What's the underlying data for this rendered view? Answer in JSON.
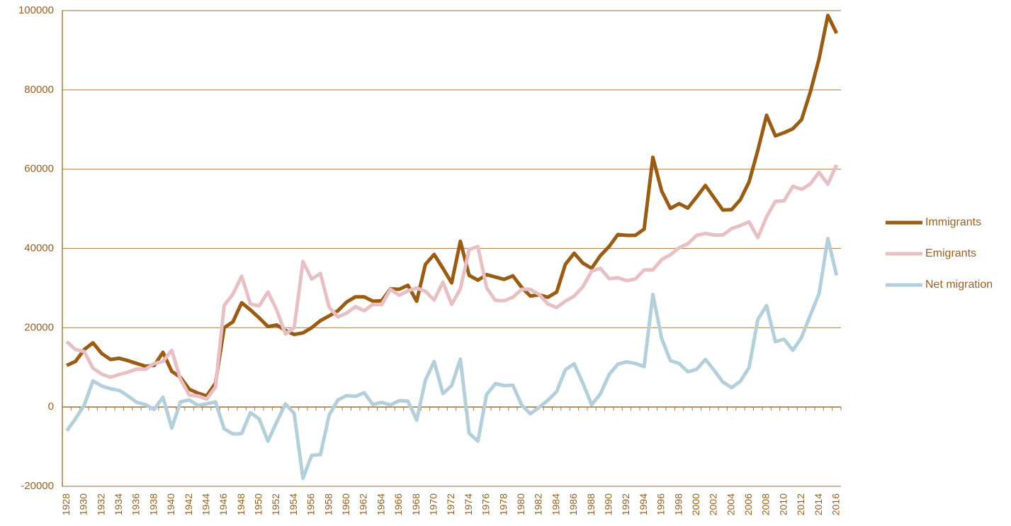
{
  "chart_data": {
    "type": "line",
    "x": [
      1928,
      1929,
      1930,
      1931,
      1932,
      1933,
      1934,
      1935,
      1936,
      1937,
      1938,
      1939,
      1940,
      1941,
      1942,
      1943,
      1944,
      1945,
      1946,
      1947,
      1948,
      1949,
      1950,
      1951,
      1952,
      1953,
      1954,
      1955,
      1956,
      1957,
      1958,
      1959,
      1960,
      1961,
      1962,
      1963,
      1964,
      1965,
      1966,
      1967,
      1968,
      1969,
      1970,
      1971,
      1972,
      1973,
      1974,
      1975,
      1976,
      1977,
      1978,
      1979,
      1980,
      1981,
      1982,
      1983,
      1984,
      1985,
      1986,
      1987,
      1988,
      1989,
      1990,
      1991,
      1992,
      1993,
      1994,
      1995,
      1996,
      1997,
      1998,
      1999,
      2000,
      2001,
      2002,
      2003,
      2004,
      2005,
      2006,
      2007,
      2008,
      2009,
      2010,
      2011,
      2012,
      2013,
      2014,
      2015,
      2016
    ],
    "xlim": [
      1927.5,
      2016.5
    ],
    "xticks": [
      1928,
      1930,
      1932,
      1934,
      1936,
      1938,
      1940,
      1942,
      1944,
      1946,
      1948,
      1950,
      1952,
      1954,
      1956,
      1958,
      1960,
      1962,
      1964,
      1966,
      1968,
      1970,
      1972,
      1974,
      1976,
      1978,
      1980,
      1982,
      1984,
      1986,
      1988,
      1990,
      1992,
      1994,
      1996,
      1998,
      2000,
      2002,
      2004,
      2006,
      2008,
      2010,
      2012,
      2014,
      2016
    ],
    "ylim": [
      -20000,
      100000
    ],
    "yticks": [
      -20000,
      0,
      20000,
      40000,
      60000,
      80000,
      100000
    ],
    "grid": true,
    "legend": "right",
    "series": [
      {
        "name": "Immigrants",
        "color": "#9a5b13",
        "values": [
          10500,
          11500,
          14500,
          16200,
          13500,
          12000,
          12300,
          11700,
          11000,
          10300,
          10500,
          13800,
          9000,
          7500,
          4500,
          3500,
          2800,
          6000,
          20000,
          21500,
          26300,
          24500,
          22500,
          20300,
          20700,
          19300,
          18300,
          18700,
          20000,
          21800,
          23000,
          24300,
          26500,
          27800,
          27800,
          26700,
          26800,
          29800,
          29700,
          30700,
          26700,
          36000,
          38500,
          35000,
          31300,
          41800,
          33200,
          32000,
          33400,
          32800,
          32200,
          33100,
          30200,
          28000,
          28300,
          27700,
          29000,
          36000,
          38800,
          36300,
          35000,
          38200,
          40500,
          43500,
          43300,
          43300,
          44900,
          63000,
          54500,
          50100,
          51300,
          50200,
          53000,
          55900,
          52800,
          49700,
          49800,
          52300,
          56800,
          64800,
          73600,
          68400,
          69200,
          70200,
          72500,
          79500,
          87900,
          98800,
          94300
        ]
      },
      {
        "name": "Emigrants",
        "color": "#e8bfc2",
        "values": [
          16500,
          14500,
          14000,
          9800,
          8300,
          7500,
          8200,
          8800,
          9600,
          9500,
          11000,
          11500,
          14300,
          7000,
          3000,
          2800,
          2000,
          5000,
          25600,
          28500,
          33000,
          26000,
          25500,
          29000,
          24500,
          18400,
          20000,
          36700,
          32300,
          33700,
          25200,
          22700,
          23700,
          25300,
          24300,
          25900,
          25800,
          29700,
          28200,
          29300,
          30000,
          29200,
          27000,
          31500,
          25900,
          29800,
          39700,
          40500,
          30100,
          26900,
          26800,
          27700,
          29700,
          29700,
          28400,
          26000,
          25100,
          26700,
          28000,
          30300,
          34300,
          35000,
          32400,
          32600,
          31900,
          32300,
          34600,
          34600,
          37200,
          38400,
          40200,
          41200,
          43300,
          43800,
          43400,
          43400,
          45000,
          45800,
          46700,
          42700,
          48000,
          51900,
          52000,
          55700,
          54900,
          56300,
          59200,
          56200,
          61100
        ]
      },
      {
        "name": "Net migration",
        "color": "#b3d0da",
        "values": [
          -6000,
          -3000,
          500,
          6600,
          5300,
          4600,
          4200,
          2800,
          1200,
          600,
          -600,
          2500,
          -5300,
          1300,
          1800,
          400,
          800,
          1300,
          -5500,
          -6800,
          -6700,
          -1400,
          -3000,
          -8600,
          -3800,
          800,
          -1600,
          -18000,
          -12200,
          -12000,
          -2000,
          1800,
          2900,
          2700,
          3600,
          600,
          1200,
          500,
          1600,
          1500,
          -3300,
          6800,
          11500,
          3400,
          5400,
          12100,
          -6600,
          -8600,
          3200,
          5900,
          5400,
          5500,
          500,
          -1700,
          -100,
          1700,
          3900,
          9400,
          10900,
          6000,
          600,
          3300,
          8200,
          10800,
          11400,
          11000,
          10200,
          28400,
          17300,
          11700,
          11000,
          8900,
          9500,
          12000,
          9300,
          6300,
          4900,
          6500,
          10000,
          22100,
          25600,
          16500,
          17100,
          14300,
          17600,
          23200,
          28600,
          42500,
          33200
        ]
      }
    ]
  }
}
